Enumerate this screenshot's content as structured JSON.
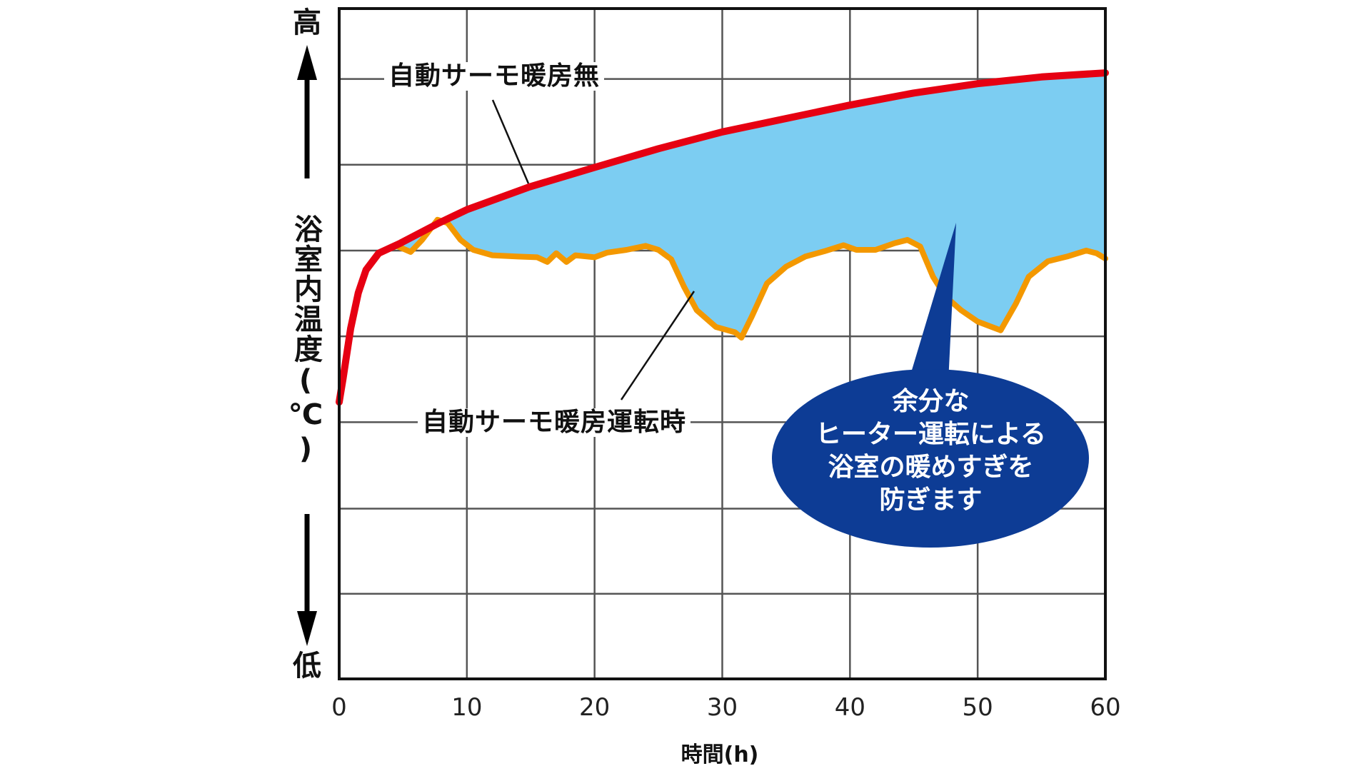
{
  "chart_data": {
    "type": "line",
    "title": "",
    "xlabel": "時間(h)",
    "ylabel": "浴室内温度(℃)",
    "y_top_label": "高",
    "y_bottom_label": "低",
    "xlim": [
      0,
      60
    ],
    "ylim_relative": [
      0,
      100
    ],
    "x_ticks": [
      "0",
      "10",
      "20",
      "30",
      "40",
      "50",
      "60"
    ],
    "grid": true,
    "y_gridlines_relative": [
      89.5,
      76.7,
      63.9,
      51.1,
      38.3,
      25.4,
      12.7
    ],
    "series": [
      {
        "name": "自動サーモ暖房無",
        "color": "#e60012",
        "points": [
          [
            0,
            41.3
          ],
          [
            0.3,
            44.8
          ],
          [
            0.9,
            52.3
          ],
          [
            1.5,
            57.6
          ],
          [
            2.1,
            61.0
          ],
          [
            3.1,
            63.5
          ],
          [
            4.8,
            65.0
          ],
          [
            7.8,
            68.0
          ],
          [
            10,
            70.0
          ],
          [
            14.9,
            73.4
          ],
          [
            20,
            76.3
          ],
          [
            25,
            79.1
          ],
          [
            30,
            81.6
          ],
          [
            35,
            83.6
          ],
          [
            40,
            85.6
          ],
          [
            45,
            87.4
          ],
          [
            50,
            88.8
          ],
          [
            55,
            89.8
          ],
          [
            60,
            90.4
          ]
        ]
      },
      {
        "name": "自動サーモ暖房運転時",
        "color": "#f39800",
        "points": [
          [
            0,
            41.3
          ],
          [
            0.3,
            44.8
          ],
          [
            0.9,
            52.3
          ],
          [
            1.5,
            57.6
          ],
          [
            2.1,
            61.0
          ],
          [
            3.1,
            63.5
          ],
          [
            4.5,
            64.6
          ],
          [
            5.6,
            63.7
          ],
          [
            6.5,
            65.5
          ],
          [
            7.7,
            68.5
          ],
          [
            8.5,
            68.0
          ],
          [
            9.5,
            65.5
          ],
          [
            10.5,
            64.0
          ],
          [
            12,
            63.2
          ],
          [
            14,
            63.0
          ],
          [
            15.5,
            62.9
          ],
          [
            16.3,
            62.2
          ],
          [
            17,
            63.5
          ],
          [
            17.8,
            62.2
          ],
          [
            18.5,
            63.2
          ],
          [
            20,
            62.9
          ],
          [
            21,
            63.6
          ],
          [
            22.5,
            64.0
          ],
          [
            24,
            64.6
          ],
          [
            25,
            64.0
          ],
          [
            26,
            62.6
          ],
          [
            27,
            58.5
          ],
          [
            28,
            55.0
          ],
          [
            29.5,
            52.5
          ],
          [
            31,
            51.7
          ],
          [
            31.5,
            50.9
          ],
          [
            32.3,
            54.0
          ],
          [
            33.5,
            59.0
          ],
          [
            35,
            61.5
          ],
          [
            36.5,
            63.0
          ],
          [
            38,
            63.8
          ],
          [
            39.5,
            64.7
          ],
          [
            40.5,
            64.0
          ],
          [
            42,
            64.0
          ],
          [
            43.5,
            65.0
          ],
          [
            44.5,
            65.5
          ],
          [
            45.5,
            64.5
          ],
          [
            46.5,
            60.0
          ],
          [
            47.5,
            57.0
          ],
          [
            48.7,
            55.0
          ],
          [
            50,
            53.3
          ],
          [
            51.8,
            52.0
          ],
          [
            53,
            56.0
          ],
          [
            54,
            60.0
          ],
          [
            55.5,
            62.3
          ],
          [
            57,
            63.0
          ],
          [
            58.5,
            63.9
          ],
          [
            59.3,
            63.5
          ],
          [
            60,
            62.7
          ]
        ]
      }
    ],
    "shaded_region": {
      "between": [
        "自動サーモ暖房無",
        "自動サーモ暖房運転時"
      ],
      "color": "#7ccdf2"
    },
    "annotations": [
      {
        "text": "自動サーモ暖房無",
        "target_series": "自動サーモ暖房無"
      },
      {
        "text": "自動サーモ暖房運転時",
        "target_series": "自動サーモ暖房運転時"
      },
      {
        "text": [
          "余分な",
          "ヒーター運転による",
          "浴室の暖めすぎを",
          "防ぎます"
        ],
        "type": "callout-bubble",
        "color": "#0d3c95"
      }
    ]
  },
  "labels": {
    "y_top": "高",
    "y_bottom": "低",
    "y_title": "浴室内温度(℃)",
    "x_title": "時間(h)",
    "series_no_thermo": "自動サーモ暖房無",
    "series_thermo": "自動サーモ暖房運転時",
    "ticks": [
      "0",
      "10",
      "20",
      "30",
      "40",
      "50",
      "60"
    ],
    "callout": {
      "line1": "余分な",
      "line2": "ヒーター運転による",
      "line3": "浴室の暖めすぎを",
      "line4": "防ぎます"
    }
  }
}
